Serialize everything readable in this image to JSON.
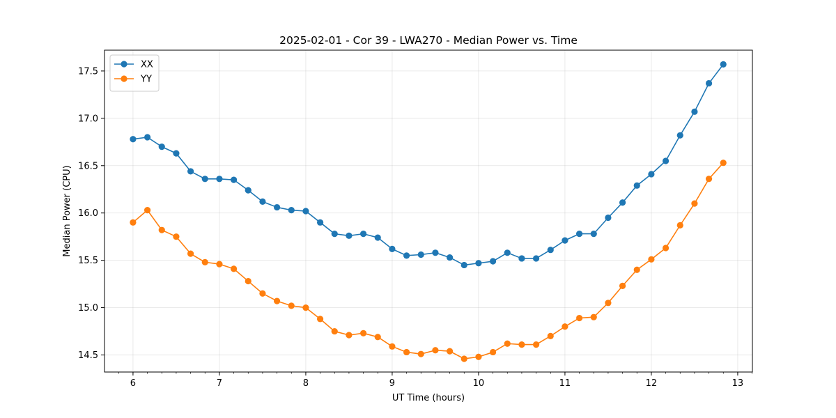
{
  "chart_data": {
    "type": "line",
    "title": "2025-02-01 - Cor 39 - LWA270 - Median Power vs. Time",
    "xlabel": "UT Time (hours)",
    "ylabel": "Median Power (CPU)",
    "xlim": [
      5.67,
      13.17
    ],
    "ylim": [
      14.32,
      17.72
    ],
    "xticks": [
      6,
      7,
      8,
      9,
      10,
      11,
      12,
      13
    ],
    "yticks": [
      14.5,
      15.0,
      15.5,
      16.0,
      16.5,
      17.0,
      17.5
    ],
    "ytick_labels": [
      "14.5",
      "15.0",
      "15.5",
      "16.0",
      "16.5",
      "17.0",
      "17.5"
    ],
    "grid": true,
    "legend_position": "top-left",
    "x": [
      6.0,
      6.1667,
      6.3333,
      6.5,
      6.6667,
      6.8333,
      7.0,
      7.1667,
      7.3333,
      7.5,
      7.6667,
      7.8333,
      8.0,
      8.1667,
      8.3333,
      8.5,
      8.6667,
      8.8333,
      9.0,
      9.1667,
      9.3333,
      9.5,
      9.6667,
      9.8333,
      10.0,
      10.1667,
      10.3333,
      10.5,
      10.6667,
      10.8333,
      11.0,
      11.1667,
      11.3333,
      11.5,
      11.6667,
      11.8333,
      12.0,
      12.1667,
      12.3333,
      12.5,
      12.6667,
      12.8333
    ],
    "series": [
      {
        "name": "XX",
        "color": "#1f77b4",
        "values": [
          16.78,
          16.8,
          16.7,
          16.63,
          16.44,
          16.36,
          16.36,
          16.35,
          16.24,
          16.12,
          16.06,
          16.03,
          16.02,
          15.9,
          15.78,
          15.76,
          15.78,
          15.74,
          15.62,
          15.55,
          15.56,
          15.58,
          15.53,
          15.45,
          15.47,
          15.49,
          15.58,
          15.52,
          15.52,
          15.61,
          15.71,
          15.78,
          15.78,
          15.95,
          16.11,
          16.29,
          16.41,
          16.55,
          16.82,
          17.07,
          17.37,
          17.57
        ]
      },
      {
        "name": "YY",
        "color": "#ff7f0e",
        "values": [
          15.9,
          16.03,
          15.82,
          15.75,
          15.57,
          15.48,
          15.46,
          15.41,
          15.28,
          15.15,
          15.07,
          15.02,
          15.0,
          14.88,
          14.75,
          14.71,
          14.73,
          14.69,
          14.59,
          14.53,
          14.51,
          14.55,
          14.54,
          14.46,
          14.48,
          14.53,
          14.62,
          14.61,
          14.61,
          14.7,
          14.8,
          14.89,
          14.9,
          15.05,
          15.23,
          15.4,
          15.51,
          15.63,
          15.87,
          16.1,
          16.36,
          16.53
        ]
      }
    ]
  }
}
